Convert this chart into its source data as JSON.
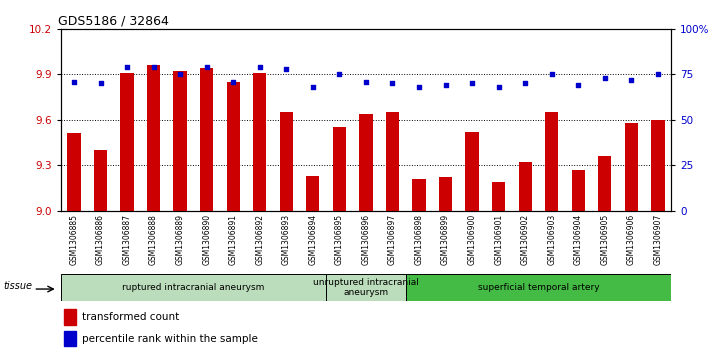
{
  "title": "GDS5186 / 32864",
  "samples": [
    "GSM1306885",
    "GSM1306886",
    "GSM1306887",
    "GSM1306888",
    "GSM1306889",
    "GSM1306890",
    "GSM1306891",
    "GSM1306892",
    "GSM1306893",
    "GSM1306894",
    "GSM1306895",
    "GSM1306896",
    "GSM1306897",
    "GSM1306898",
    "GSM1306899",
    "GSM1306900",
    "GSM1306901",
    "GSM1306902",
    "GSM1306903",
    "GSM1306904",
    "GSM1306905",
    "GSM1306906",
    "GSM1306907"
  ],
  "transformed_count": [
    9.51,
    9.4,
    9.91,
    9.96,
    9.92,
    9.94,
    9.85,
    9.91,
    9.65,
    9.23,
    9.55,
    9.64,
    9.65,
    9.21,
    9.22,
    9.52,
    9.19,
    9.32,
    9.65,
    9.27,
    9.36,
    9.58,
    9.6
  ],
  "percentile_rank": [
    71,
    70,
    79,
    79,
    75,
    79,
    71,
    79,
    78,
    68,
    75,
    71,
    70,
    68,
    69,
    70,
    68,
    70,
    75,
    69,
    73,
    72,
    75
  ],
  "ylim_left": [
    9.0,
    10.2
  ],
  "ylim_right": [
    0,
    100
  ],
  "yticks_left": [
    9.0,
    9.3,
    9.6,
    9.9,
    10.2
  ],
  "yticks_right": [
    0,
    25,
    50,
    75,
    100
  ],
  "bar_color": "#cc0000",
  "dot_color": "#0000cc",
  "fig_bg_color": "#ffffff",
  "plot_bg_color": "#ffffff",
  "xtick_bg_color": "#cccccc",
  "groups": [
    {
      "label": "ruptured intracranial aneurysm",
      "start": 0,
      "end": 10,
      "color": "#bbddbb"
    },
    {
      "label": "unruptured intracranial\naneurysm",
      "start": 10,
      "end": 13,
      "color": "#bbddbb"
    },
    {
      "label": "superficial temporal artery",
      "start": 13,
      "end": 23,
      "color": "#44bb44"
    }
  ],
  "tissue_label": "tissue",
  "legend_bar_label": "transformed count",
  "legend_dot_label": "percentile rank within the sample"
}
